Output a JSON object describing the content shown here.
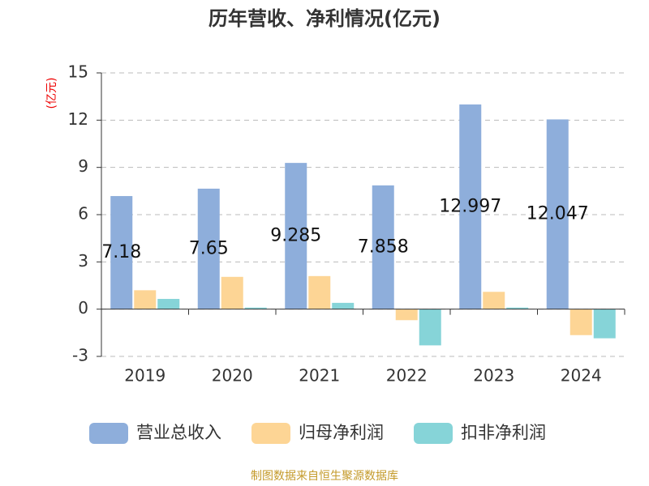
{
  "chart_data": {
    "type": "bar",
    "title": "历年营收、净利情况(亿元)",
    "y_label": "(亿元)",
    "categories": [
      "2019",
      "2020",
      "2021",
      "2022",
      "2023",
      "2024"
    ],
    "series": [
      {
        "name": "营业总收入",
        "color": "#8eaedb",
        "values": [
          7.18,
          7.65,
          9.285,
          7.858,
          12.997,
          12.047
        ],
        "show_labels": true
      },
      {
        "name": "归母净利润",
        "color": "#fdd595",
        "values": [
          1.2,
          2.05,
          2.1,
          -0.7,
          1.1,
          -1.65
        ]
      },
      {
        "name": "扣非净利润",
        "color": "#86d4d8",
        "values": [
          0.65,
          0.1,
          0.4,
          -2.3,
          0.1,
          -1.85
        ]
      }
    ],
    "ylim": [
      -3,
      15
    ],
    "yticks": [
      -3,
      0,
      3,
      6,
      9,
      12,
      15
    ],
    "grid": true,
    "source": "制图数据来自恒生聚源数据库"
  }
}
